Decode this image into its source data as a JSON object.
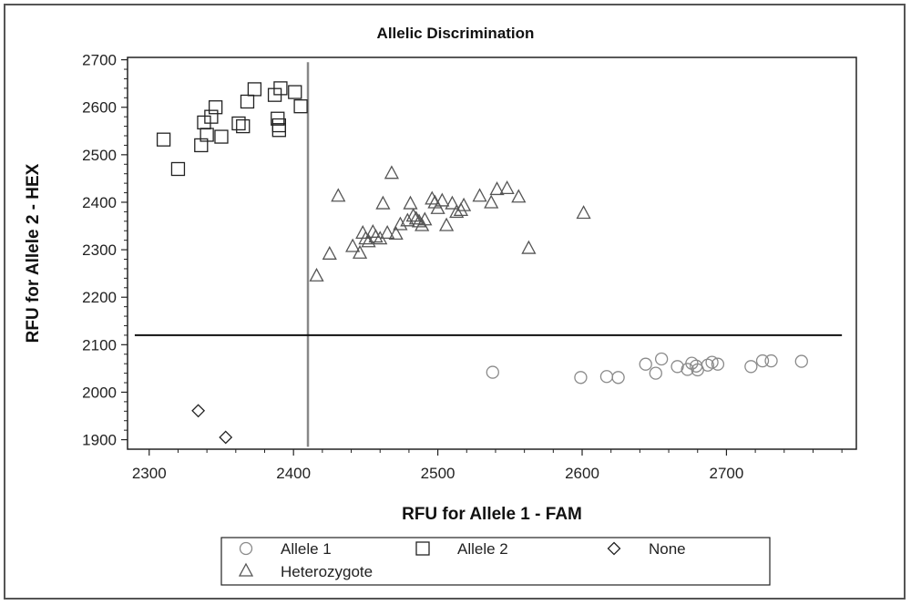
{
  "chart_data": {
    "type": "scatter",
    "title": "Allelic Discrimination",
    "xlabel": "RFU for Allele 1 - FAM",
    "ylabel": "RFU for Allele 2 - HEX",
    "xlim": [
      2285,
      2790
    ],
    "ylim": [
      1880,
      2705
    ],
    "x_ticks": [
      "2300",
      "2400",
      "2500",
      "2600",
      "2700"
    ],
    "y_ticks": [
      "1900",
      "2000",
      "2100",
      "2200",
      "2300",
      "2400",
      "2500",
      "2600",
      "2700"
    ],
    "threshold_x": 2410,
    "threshold_y": 2120,
    "grid": false,
    "legend_position": "bottom",
    "series": [
      {
        "name": "Allele 1",
        "marker": "circle",
        "color": "#8a8a8a",
        "points": [
          [
            2538,
            2042
          ],
          [
            2599,
            2031
          ],
          [
            2617,
            2033
          ],
          [
            2625,
            2031
          ],
          [
            2644,
            2059
          ],
          [
            2651,
            2040
          ],
          [
            2655,
            2070
          ],
          [
            2666,
            2054
          ],
          [
            2673,
            2048
          ],
          [
            2676,
            2061
          ],
          [
            2679,
            2055
          ],
          [
            2680,
            2047
          ],
          [
            2687,
            2057
          ],
          [
            2690,
            2063
          ],
          [
            2694,
            2059
          ],
          [
            2717,
            2054
          ],
          [
            2725,
            2066
          ],
          [
            2731,
            2066
          ],
          [
            2752,
            2065
          ]
        ]
      },
      {
        "name": "Allele 2",
        "marker": "square",
        "color": "#222222",
        "points": [
          [
            2310,
            2532
          ],
          [
            2320,
            2470
          ],
          [
            2336,
            2520
          ],
          [
            2338,
            2568
          ],
          [
            2340,
            2542
          ],
          [
            2343,
            2580
          ],
          [
            2346,
            2600
          ],
          [
            2350,
            2538
          ],
          [
            2362,
            2566
          ],
          [
            2365,
            2560
          ],
          [
            2368,
            2612
          ],
          [
            2373,
            2638
          ],
          [
            2387,
            2626
          ],
          [
            2389,
            2576
          ],
          [
            2390,
            2562
          ],
          [
            2390,
            2552
          ],
          [
            2391,
            2640
          ],
          [
            2401,
            2632
          ],
          [
            2405,
            2602
          ]
        ]
      },
      {
        "name": "None",
        "marker": "diamond",
        "color": "#222222",
        "points": [
          [
            2334,
            1961
          ],
          [
            2353,
            1905
          ]
        ]
      },
      {
        "name": "Heterozygote",
        "marker": "triangle",
        "color": "#555555",
        "points": [
          [
            2416,
            2244
          ],
          [
            2425,
            2290
          ],
          [
            2431,
            2412
          ],
          [
            2441,
            2306
          ],
          [
            2446,
            2292
          ],
          [
            2448,
            2334
          ],
          [
            2450,
            2322
          ],
          [
            2452,
            2316
          ],
          [
            2455,
            2336
          ],
          [
            2457,
            2326
          ],
          [
            2460,
            2322
          ],
          [
            2462,
            2396
          ],
          [
            2465,
            2334
          ],
          [
            2468,
            2460
          ],
          [
            2471,
            2332
          ],
          [
            2474,
            2352
          ],
          [
            2479,
            2360
          ],
          [
            2481,
            2396
          ],
          [
            2483,
            2370
          ],
          [
            2485,
            2364
          ],
          [
            2487,
            2358
          ],
          [
            2489,
            2350
          ],
          [
            2491,
            2362
          ],
          [
            2496,
            2406
          ],
          [
            2498,
            2398
          ],
          [
            2500,
            2386
          ],
          [
            2503,
            2402
          ],
          [
            2506,
            2350
          ],
          [
            2510,
            2396
          ],
          [
            2513,
            2378
          ],
          [
            2516,
            2382
          ],
          [
            2518,
            2392
          ],
          [
            2529,
            2412
          ],
          [
            2537,
            2398
          ],
          [
            2541,
            2426
          ],
          [
            2548,
            2428
          ],
          [
            2556,
            2410
          ],
          [
            2563,
            2302
          ],
          [
            2601,
            2376
          ]
        ]
      }
    ]
  },
  "legend": {
    "items": [
      {
        "label": "Allele 1"
      },
      {
        "label": "Allele 2"
      },
      {
        "label": "None"
      },
      {
        "label": "Heterozygote"
      }
    ]
  }
}
